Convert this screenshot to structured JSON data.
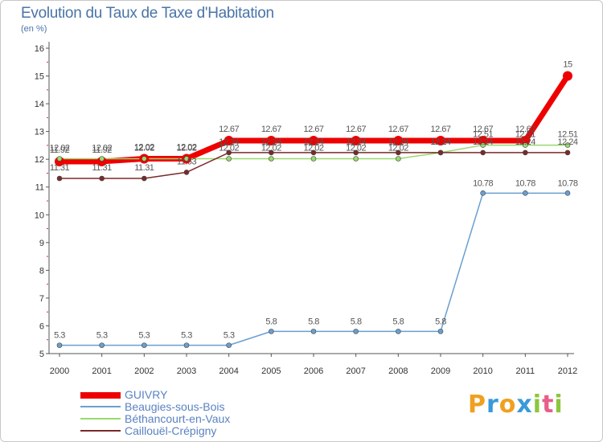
{
  "header": {
    "title": "Evolution du Taux de Taxe d'Habitation",
    "subtitle": "(en %)"
  },
  "logo": {
    "letters": [
      "P",
      "r",
      "o",
      "x",
      "i",
      "t",
      "i"
    ],
    "colors": [
      "#f0a020",
      "#3a9ad9",
      "#f0a020",
      "#3a9ad9",
      "#8cc63e",
      "#e85d8a",
      "#8cc63e"
    ]
  },
  "chart_data": {
    "type": "line",
    "title": "Evolution du Taux de Taxe d'Habitation",
    "ylabel": "(en %)",
    "xlabel": "",
    "x": [
      "2000",
      "2001",
      "2002",
      "2003",
      "2004",
      "2005",
      "2006",
      "2007",
      "2008",
      "2009",
      "2010",
      "2011",
      "2012"
    ],
    "ylim": [
      5,
      16
    ],
    "yticks": [
      "5",
      "6",
      "7",
      "8",
      "9",
      "10",
      "11",
      "12",
      "13",
      "14",
      "15",
      "16"
    ],
    "grid": false,
    "legend_position": "bottom-left",
    "series": [
      {
        "name": "GUIVRY",
        "color": "#ee0000",
        "values": [
          11.92,
          11.92,
          12.02,
          12.02,
          12.67,
          12.67,
          12.67,
          12.67,
          12.67,
          12.67,
          12.67,
          12.67,
          15
        ],
        "labels": [
          "11.92",
          "11.92",
          "12.02",
          "12.02",
          "12.67",
          "12.67",
          "12.67",
          "12.67",
          "12.67",
          "12.67",
          "12.67",
          "12.67",
          "15"
        ]
      },
      {
        "name": "Beaugies-sous-Bois",
        "color": "#6a9fd0",
        "values": [
          5.3,
          5.3,
          5.3,
          5.3,
          5.3,
          5.8,
          5.8,
          5.8,
          5.8,
          5.8,
          10.78,
          10.78,
          10.78
        ],
        "labels": [
          "5.3",
          "5.3",
          "5.3",
          "5.3",
          "5.3",
          "5.8",
          "5.8",
          "5.8",
          "5.8",
          "5.8",
          "10.78",
          "10.78",
          "10.78"
        ]
      },
      {
        "name": "Béthancourt-en-Vaux",
        "color": "#99d96e",
        "values": [
          12.02,
          12.02,
          12.02,
          12.02,
          12.02,
          12.02,
          12.02,
          12.02,
          12.02,
          12.24,
          12.51,
          12.51,
          12.51
        ],
        "labels": [
          "12.02",
          "12.02",
          "12.02",
          "12.02",
          "12.02",
          "12.02",
          "12.02",
          "12.02",
          "12.02",
          "12.24",
          "12.51",
          "12.51",
          "12.51"
        ]
      },
      {
        "name": "Caillouël-Crépigny",
        "color": "#7a2a2a",
        "values": [
          11.31,
          11.31,
          11.31,
          11.53,
          12.24,
          12.24,
          12.24,
          12.24,
          12.24,
          12.24,
          12.24,
          12.24,
          12.24
        ],
        "labels": [
          "11.31",
          "11.31",
          "11.31",
          "11.53",
          "12.24",
          "12.24",
          "12.24",
          "12.24",
          "12.24",
          "12.24",
          "12.24",
          "12.24",
          "12.24"
        ]
      }
    ]
  }
}
